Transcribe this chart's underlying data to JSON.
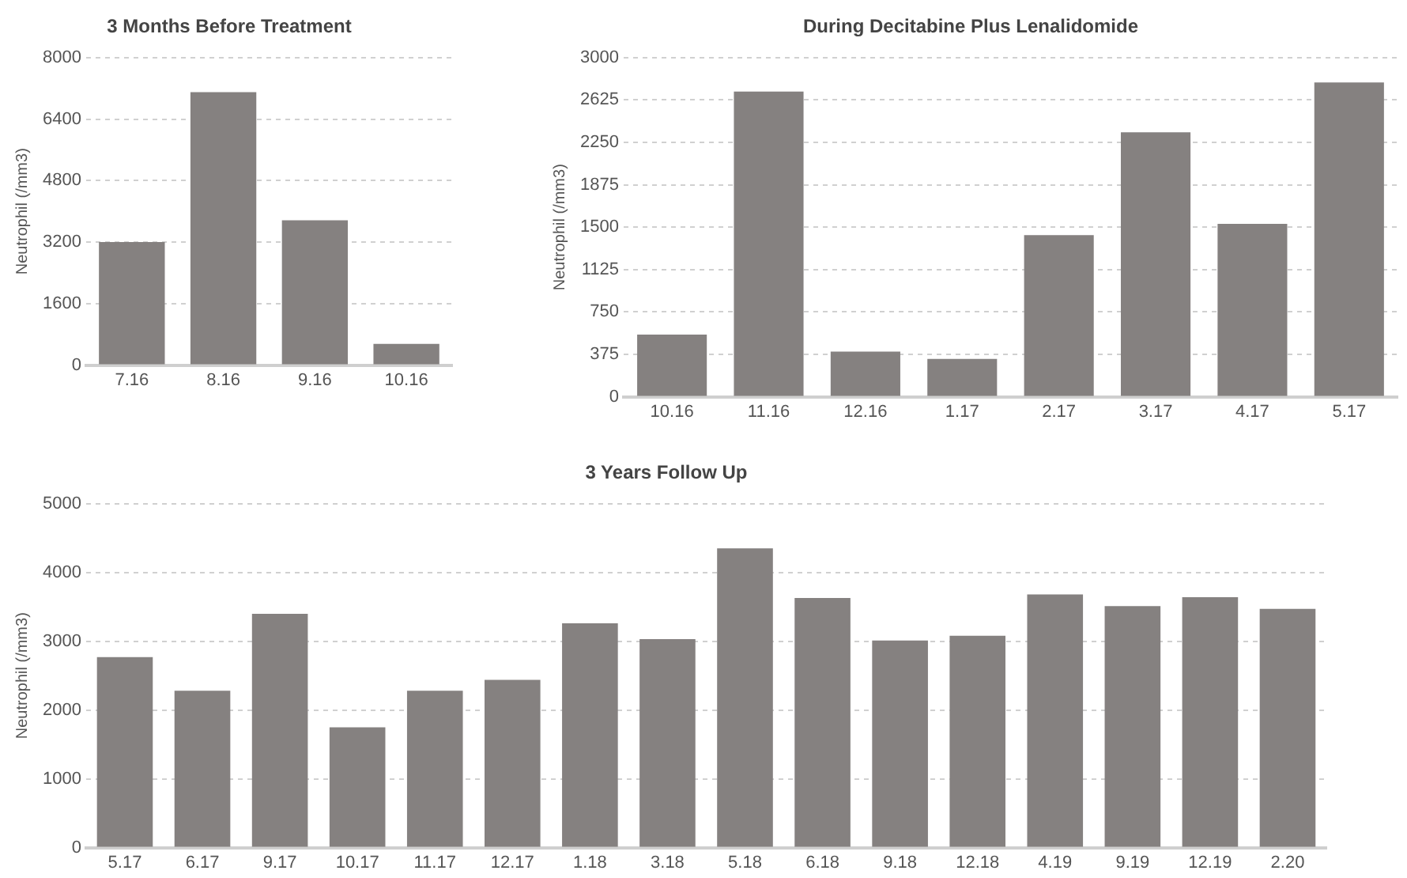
{
  "chart_data": [
    {
      "type": "bar",
      "title": "3 Months Before Treatment",
      "ylabel": "Neutrophil (/mm3)",
      "categories": [
        "7.16",
        "8.16",
        "9.16",
        "10.16"
      ],
      "values": [
        3200,
        7100,
        3770,
        550
      ],
      "color": "#858180",
      "ylim": [
        0,
        8000
      ],
      "yticks": [
        0,
        1600,
        3200,
        4800,
        6400,
        8000
      ],
      "grid": "y",
      "legend": false
    },
    {
      "type": "bar",
      "title": "During Decitabine Plus Lenalidomide",
      "ylabel": "Neutrophil (/mm3)",
      "categories": [
        "10.16",
        "11.16",
        "12.16",
        "1.17",
        "2.17",
        "3.17",
        "4.17",
        "5.17"
      ],
      "values": [
        550,
        2700,
        400,
        335,
        1430,
        2340,
        1530,
        2780
      ],
      "color": "#858180",
      "ylim": [
        0,
        3000
      ],
      "yticks": [
        0,
        375,
        750,
        1125,
        1500,
        1875,
        2250,
        2625,
        3000
      ],
      "grid": "y",
      "legend": false
    },
    {
      "type": "bar",
      "title": "3 Years Follow Up",
      "ylabel": "Neutrophil (/mm3)",
      "categories": [
        "5.17",
        "6.17",
        "9.17",
        "10.17",
        "11.17",
        "12.17",
        "1.18",
        "3.18",
        "5.18",
        "6.18",
        "9.18",
        "12.18",
        "4.19",
        "9.19",
        "12.19",
        "2.20"
      ],
      "values": [
        2770,
        2280,
        3400,
        1750,
        2280,
        2440,
        3260,
        3030,
        4350,
        3630,
        3010,
        3080,
        3680,
        3510,
        3640,
        3470
      ],
      "color": "#858180",
      "ylim": [
        0,
        5000
      ],
      "yticks": [
        0,
        1000,
        2000,
        3000,
        4000,
        5000
      ],
      "grid": "y",
      "legend": false
    }
  ]
}
